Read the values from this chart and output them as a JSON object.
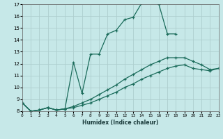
{
  "xlabel": "Humidex (Indice chaleur)",
  "xlim": [
    0,
    23
  ],
  "ylim": [
    8,
    17
  ],
  "xticks": [
    0,
    1,
    2,
    3,
    4,
    5,
    6,
    7,
    8,
    9,
    10,
    11,
    12,
    13,
    14,
    15,
    16,
    17,
    18,
    19,
    20,
    21,
    22,
    23
  ],
  "yticks": [
    8,
    9,
    10,
    11,
    12,
    13,
    14,
    15,
    16,
    17
  ],
  "background_color": "#c6e8e8",
  "grid_color": "#aecece",
  "line_color": "#1a6b5a",
  "lines": [
    {
      "x": [
        0,
        1,
        2,
        3,
        4,
        5,
        6,
        7,
        8,
        9,
        10,
        11,
        12,
        13,
        14,
        15,
        16,
        17,
        18
      ],
      "y": [
        8.7,
        8.0,
        8.1,
        8.3,
        8.1,
        8.2,
        12.1,
        9.5,
        12.8,
        12.8,
        14.5,
        14.8,
        15.7,
        15.9,
        17.1,
        17.2,
        17.0,
        14.5,
        14.5
      ]
    },
    {
      "x": [
        0,
        1,
        2,
        3,
        4,
        5,
        6,
        7,
        8,
        9,
        10,
        11,
        12,
        13,
        14,
        15,
        16,
        17,
        18,
        19,
        20,
        21,
        22,
        23
      ],
      "y": [
        8.7,
        8.0,
        8.1,
        8.3,
        8.1,
        8.2,
        8.4,
        8.7,
        9.0,
        9.4,
        9.8,
        10.2,
        10.7,
        11.1,
        11.5,
        11.9,
        12.2,
        12.5,
        12.5,
        12.5,
        12.2,
        11.9,
        11.5,
        11.6
      ]
    },
    {
      "x": [
        0,
        1,
        2,
        3,
        4,
        5,
        6,
        7,
        8,
        9,
        10,
        11,
        12,
        13,
        14,
        15,
        16,
        17,
        18,
        19,
        20,
        21,
        22,
        23
      ],
      "y": [
        8.7,
        8.0,
        8.1,
        8.3,
        8.1,
        8.2,
        8.3,
        8.5,
        8.7,
        9.0,
        9.3,
        9.6,
        10.0,
        10.3,
        10.7,
        11.0,
        11.3,
        11.6,
        11.8,
        11.9,
        11.6,
        11.5,
        11.4,
        11.6
      ]
    }
  ]
}
